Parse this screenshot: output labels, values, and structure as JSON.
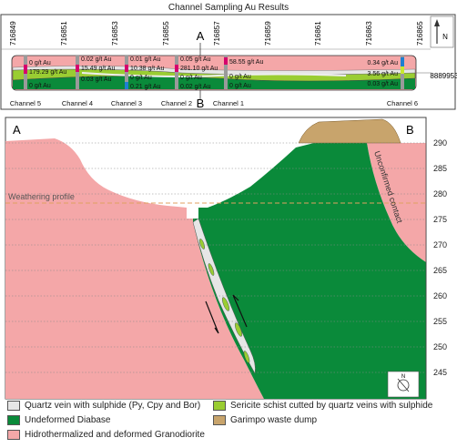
{
  "title": "Channel Sampling Au Results",
  "plan": {
    "section_start_label": "A",
    "section_end_label": "B",
    "easting_ticks": [
      "716849",
      "716851",
      "716853",
      "716855",
      "716857",
      "716859",
      "716861",
      "716863",
      "716865"
    ],
    "northing_label": "8889953",
    "north_label": "N",
    "channels": [
      {
        "name": "Channel 5",
        "assays": [
          "0 g/t Au",
          "179.29 g/t Au",
          "0 g/t Au"
        ]
      },
      {
        "name": "Channel 4",
        "assays": [
          "0.02 g/t Au",
          "15.49 g/t Au",
          "0.03 g/t Au"
        ]
      },
      {
        "name": "Channel 3",
        "assays": [
          "0.01 g/t Au",
          "10.38 g/t Au",
          "0 g/t Au",
          "0.21 g/t Au"
        ]
      },
      {
        "name": "Channel 2",
        "assays": [
          "0.05 g/t Au",
          "281.10 g/t Au",
          "0 g/t Au",
          "0.02 g/t Au"
        ]
      },
      {
        "name": "Channel 1",
        "assays": [
          "58.55 g/t Au",
          "0 g/t Au",
          "0 g/t Au"
        ]
      },
      {
        "name": "Channel 6",
        "assays": [
          "0.34 g/t Au",
          "3.56 g/t Au",
          "0.03 g/t Au"
        ]
      }
    ]
  },
  "section": {
    "start_label": "A",
    "end_label": "B",
    "elevation_ticks": [
      "290",
      "285",
      "280",
      "275",
      "270",
      "265",
      "260",
      "255",
      "250",
      "245"
    ],
    "weathering_label": "Weathering profile",
    "unconfirmed_label": "Unconfirmed contact",
    "north_label": "N"
  },
  "legend": [
    {
      "label": "Quartz vein with sulphide (Py, Cpy and Bor)",
      "color": "#e6e6e6"
    },
    {
      "label": "Sericite schist cutted by quartz veins with sulphide",
      "color": "#9acd32"
    },
    {
      "label": "Undeformed Diabase",
      "color": "#0a8a3a"
    },
    {
      "label": "Garimpo waste dump",
      "color": "#c8a46c"
    },
    {
      "label": "Hidrothermalized and deformed Granodiorite",
      "color": "#f4a7a8"
    }
  ],
  "colors": {
    "granodiorite": "#f4a7a8",
    "diabase": "#0a8a3a",
    "schist": "#9acd32",
    "quartz": "#e6e6e6",
    "dump": "#c8a46c",
    "weathering_line": "#e0a060"
  }
}
